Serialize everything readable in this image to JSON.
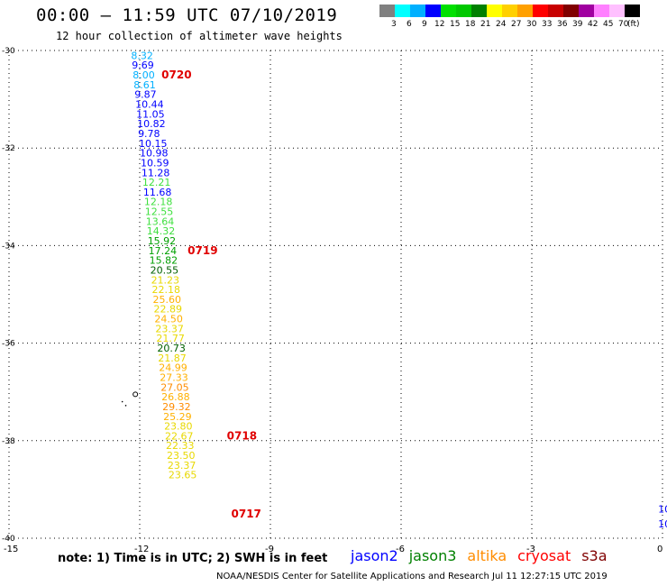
{
  "header": {
    "title": "00:00 – 11:59 UTC 07/10/2019",
    "subtitle": "12 hour collection of altimeter wave heights"
  },
  "colorscale": {
    "unit": "(ft)",
    "colors": [
      "#808080",
      "#00ffff",
      "#00b0ff",
      "#0000ff",
      "#00e000",
      "#00c800",
      "#008000",
      "#ffff00",
      "#ffd000",
      "#ffa000",
      "#ff0000",
      "#c80000",
      "#800000",
      "#a000a0",
      "#ff80ff",
      "#ffc0ff",
      "#000000"
    ],
    "ticks": [
      "3",
      "6",
      "9",
      "12",
      "15",
      "18",
      "21",
      "24",
      "27",
      "30",
      "33",
      "36",
      "39",
      "42",
      "45",
      "70"
    ]
  },
  "chart_data": {
    "type": "scatter",
    "xlim": [
      -15,
      0
    ],
    "ylim": [
      -40,
      -30
    ],
    "x_ticks": [
      "-15",
      "-12",
      "-9",
      "-6",
      "-3",
      "0"
    ],
    "y_ticks": [
      "-30",
      "-32",
      "-34",
      "-36",
      "-38",
      "-40"
    ],
    "grid": true,
    "track_color_key": "jason2",
    "points": [
      {
        "x": -12.2,
        "y": -30.1,
        "label": "8.32",
        "color": "#00b0ff"
      },
      {
        "x": -12.18,
        "y": -30.3,
        "label": "9.69",
        "color": "#0000ff"
      },
      {
        "x": -12.16,
        "y": -30.5,
        "label": "8.00",
        "color": "#00b0ff"
      },
      {
        "x": -12.14,
        "y": -30.7,
        "label": "8.61",
        "color": "#00b0ff"
      },
      {
        "x": -12.12,
        "y": -30.9,
        "label": "9.87",
        "color": "#0000ff"
      },
      {
        "x": -12.1,
        "y": -31.1,
        "label": "10.44",
        "color": "#0000ff"
      },
      {
        "x": -12.08,
        "y": -31.3,
        "label": "11.05",
        "color": "#0000ff"
      },
      {
        "x": -12.06,
        "y": -31.5,
        "label": "10.82",
        "color": "#0000ff"
      },
      {
        "x": -12.04,
        "y": -31.7,
        "label": "9.78",
        "color": "#0000ff"
      },
      {
        "x": -12.02,
        "y": -31.9,
        "label": "10.15",
        "color": "#0000ff"
      },
      {
        "x": -12.0,
        "y": -32.1,
        "label": "10.98",
        "color": "#0000ff"
      },
      {
        "x": -11.98,
        "y": -32.3,
        "label": "10.59",
        "color": "#0000ff"
      },
      {
        "x": -11.96,
        "y": -32.5,
        "label": "11.28",
        "color": "#0000ff"
      },
      {
        "x": -11.94,
        "y": -32.7,
        "label": "12.21",
        "color": "#40e040"
      },
      {
        "x": -11.92,
        "y": -32.9,
        "label": "11.68",
        "color": "#0000ff"
      },
      {
        "x": -11.9,
        "y": -33.1,
        "label": "12.18",
        "color": "#40e040"
      },
      {
        "x": -11.88,
        "y": -33.3,
        "label": "12.55",
        "color": "#40e040"
      },
      {
        "x": -11.86,
        "y": -33.5,
        "label": "13.64",
        "color": "#40e040"
      },
      {
        "x": -11.84,
        "y": -33.7,
        "label": "14.32",
        "color": "#40e040"
      },
      {
        "x": -11.82,
        "y": -33.9,
        "label": "15.92",
        "color": "#00a000"
      },
      {
        "x": -11.8,
        "y": -34.1,
        "label": "17.24",
        "color": "#00a000"
      },
      {
        "x": -11.78,
        "y": -34.3,
        "label": "15.82",
        "color": "#00a000"
      },
      {
        "x": -11.76,
        "y": -34.5,
        "label": "20.55",
        "color": "#006000"
      },
      {
        "x": -11.74,
        "y": -34.7,
        "label": "21.23",
        "color": "#e8d800"
      },
      {
        "x": -11.72,
        "y": -34.9,
        "label": "22.18",
        "color": "#e8d800"
      },
      {
        "x": -11.7,
        "y": -35.1,
        "label": "25.60",
        "color": "#ffb000"
      },
      {
        "x": -11.68,
        "y": -35.3,
        "label": "22.89",
        "color": "#e8d800"
      },
      {
        "x": -11.66,
        "y": -35.5,
        "label": "24.50",
        "color": "#ffb000"
      },
      {
        "x": -11.64,
        "y": -35.7,
        "label": "23.37",
        "color": "#e8d800"
      },
      {
        "x": -11.62,
        "y": -35.9,
        "label": "21.77",
        "color": "#e8d800"
      },
      {
        "x": -11.6,
        "y": -36.1,
        "label": "20.73",
        "color": "#006000"
      },
      {
        "x": -11.58,
        "y": -36.3,
        "label": "21.87",
        "color": "#e8d800"
      },
      {
        "x": -11.56,
        "y": -36.5,
        "label": "24.99",
        "color": "#ffb000"
      },
      {
        "x": -11.54,
        "y": -36.7,
        "label": "27.33",
        "color": "#ffb000"
      },
      {
        "x": -11.52,
        "y": -36.9,
        "label": "27.05",
        "color": "#ff8c00"
      },
      {
        "x": -11.5,
        "y": -37.1,
        "label": "26.88",
        "color": "#ffb000"
      },
      {
        "x": -11.48,
        "y": -37.3,
        "label": "29.32",
        "color": "#ff8c00"
      },
      {
        "x": -11.46,
        "y": -37.5,
        "label": "25.29",
        "color": "#ffb000"
      },
      {
        "x": -11.44,
        "y": -37.7,
        "label": "23.80",
        "color": "#e8d800"
      },
      {
        "x": -11.42,
        "y": -37.9,
        "label": "22.67",
        "color": "#e8d800"
      },
      {
        "x": -11.4,
        "y": -38.1,
        "label": "22.33",
        "color": "#e8d800"
      },
      {
        "x": -11.38,
        "y": -38.3,
        "label": "23.50",
        "color": "#e8d800"
      },
      {
        "x": -11.36,
        "y": -38.5,
        "label": "23.37",
        "color": "#e8d800"
      },
      {
        "x": -11.34,
        "y": -38.7,
        "label": "23.65",
        "color": "#e8d800"
      }
    ],
    "time_labels": [
      {
        "label": "0720",
        "x": -11.5,
        "y": -30.5
      },
      {
        "label": "0719",
        "x": -10.9,
        "y": -34.1
      },
      {
        "label": "0718",
        "x": -10.0,
        "y": -37.9
      },
      {
        "label": "0717",
        "x": -9.9,
        "y": -39.5
      }
    ],
    "edge_labels": [
      {
        "label": "10",
        "x": -0.1,
        "y": -39.4
      },
      {
        "label": "10",
        "x": -0.1,
        "y": -39.7
      }
    ]
  },
  "legend": {
    "items": [
      {
        "label": "jason2",
        "color": "#0000ff"
      },
      {
        "label": "jason3",
        "color": "#008000"
      },
      {
        "label": "altika",
        "color": "#ff8c00"
      },
      {
        "label": "cryosat",
        "color": "#ff0000"
      },
      {
        "label": "s3a",
        "color": "#800000"
      }
    ]
  },
  "note": "note:  1) Time is in UTC;  2) SWH is in feet",
  "footer": "NOAA/NESDIS Center for Satellite Applications and Research    Jul 11 12:27:15 UTC 2019"
}
